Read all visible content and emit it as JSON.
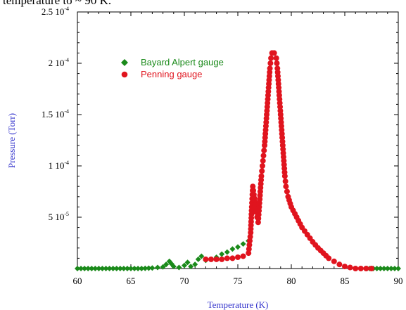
{
  "caption_fragment": "temperature to ~ 90 K.",
  "colors": {
    "bayard": "#1a8a1a",
    "penning": "#e0141e",
    "axis_title": "#3333cc"
  },
  "chart_data": {
    "type": "scatter",
    "xlabel": "Temperature (K)",
    "ylabel": "Pressure (Torr)",
    "xlim": [
      60,
      90
    ],
    "ylim": [
      0,
      0.00025
    ],
    "x_ticks": [
      60,
      65,
      70,
      75,
      80,
      85,
      90
    ],
    "y_tick_labels": [
      {
        "value": 5e-05,
        "mantissa": "5 10",
        "exp": "-5"
      },
      {
        "value": 0.0001,
        "mantissa": "1 10",
        "exp": "-4"
      },
      {
        "value": 0.00015,
        "mantissa": "1.5 10",
        "exp": "-4"
      },
      {
        "value": 0.0002,
        "mantissa": "2 10",
        "exp": "-4"
      },
      {
        "value": 0.00025,
        "mantissa": "2.5 10",
        "exp": "-4"
      }
    ],
    "legend_position": "upper-left",
    "series": [
      {
        "name": "Bayard Alpert gauge",
        "marker": "diamond",
        "points": [
          [
            60.0,
            0.0
          ],
          [
            61.0,
            0.0
          ],
          [
            62.0,
            0.0
          ],
          [
            63.0,
            0.0
          ],
          [
            64.0,
            0.0
          ],
          [
            65.0,
            0.0
          ],
          [
            66.0,
            0.0
          ],
          [
            67.0,
            5e-07
          ],
          [
            67.5,
            1e-06
          ],
          [
            68.0,
            1.5e-06
          ],
          [
            68.3,
            4e-06
          ],
          [
            68.6,
            7e-06
          ],
          [
            69.0,
            2e-06
          ],
          [
            69.5,
            1e-06
          ],
          [
            70.0,
            3e-06
          ],
          [
            70.3,
            6e-06
          ],
          [
            70.6,
            2e-06
          ],
          [
            71.0,
            4e-06
          ],
          [
            71.3,
            9e-06
          ],
          [
            71.6,
            1.2e-05
          ],
          [
            72.0,
            8e-06
          ],
          [
            72.5,
            9e-06
          ],
          [
            73.0,
            1.1e-05
          ],
          [
            73.5,
            1.4e-05
          ],
          [
            74.0,
            1.6e-05
          ],
          [
            74.5,
            1.9e-05
          ],
          [
            75.0,
            2.1e-05
          ],
          [
            75.5,
            2.4e-05
          ],
          [
            76.0,
            2.7e-05
          ],
          [
            86.5,
            0.0
          ],
          [
            87.0,
            0.0
          ],
          [
            88.0,
            0.0
          ],
          [
            89.0,
            0.0
          ],
          [
            90.0,
            0.0
          ]
        ]
      },
      {
        "name": "Penning gauge",
        "marker": "circle",
        "points": [
          [
            72.0,
            9e-06
          ],
          [
            72.5,
            9e-06
          ],
          [
            73.0,
            9e-06
          ],
          [
            73.5,
            9e-06
          ],
          [
            74.0,
            1e-05
          ],
          [
            74.5,
            1e-05
          ],
          [
            75.0,
            1.1e-05
          ],
          [
            75.5,
            1.2e-05
          ],
          [
            76.0,
            1.5e-05
          ],
          [
            76.2,
            3.5e-05
          ],
          [
            76.3,
            6e-05
          ],
          [
            76.4,
            8e-05
          ],
          [
            76.5,
            7.2e-05
          ],
          [
            76.7,
            5.5e-05
          ],
          [
            76.9,
            4.5e-05
          ],
          [
            77.0,
            6e-05
          ],
          [
            77.1,
            7.5e-05
          ],
          [
            77.2,
            9e-05
          ],
          [
            77.3,
            0.0001
          ],
          [
            77.4,
            0.00011
          ],
          [
            77.5,
            0.00012
          ],
          [
            77.6,
            0.000135
          ],
          [
            77.7,
            0.00015
          ],
          [
            77.8,
            0.000165
          ],
          [
            77.9,
            0.00018
          ],
          [
            78.0,
            0.000195
          ],
          [
            78.1,
            0.000205
          ],
          [
            78.2,
            0.00021
          ],
          [
            78.4,
            0.00021
          ],
          [
            78.6,
            0.000205
          ],
          [
            78.7,
            0.000195
          ],
          [
            78.8,
            0.00018
          ],
          [
            78.9,
            0.000165
          ],
          [
            79.0,
            0.00015
          ],
          [
            79.1,
            0.000135
          ],
          [
            79.2,
            0.00012
          ],
          [
            79.3,
            0.000105
          ],
          [
            79.4,
            9e-05
          ],
          [
            79.5,
            8e-05
          ],
          [
            79.7,
            7e-05
          ],
          [
            80.0,
            6e-05
          ],
          [
            80.5,
            5e-05
          ],
          [
            81.0,
            4e-05
          ],
          [
            81.5,
            3.3e-05
          ],
          [
            82.0,
            2.6e-05
          ],
          [
            82.5,
            2e-05
          ],
          [
            83.0,
            1.5e-05
          ],
          [
            83.5,
            1e-05
          ],
          [
            84.0,
            7e-06
          ],
          [
            84.5,
            4e-06
          ],
          [
            85.0,
            2e-06
          ],
          [
            85.5,
            1e-06
          ],
          [
            86.0,
            0.0
          ],
          [
            86.5,
            0.0
          ],
          [
            87.0,
            0.0
          ],
          [
            87.5,
            0.0
          ]
        ]
      }
    ]
  }
}
